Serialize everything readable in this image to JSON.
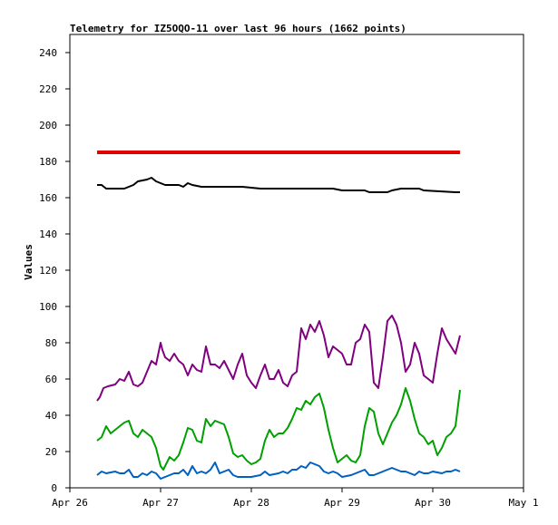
{
  "chart_data": {
    "type": "line",
    "title": "Telemetry for IZ5OQO-11 over last 96 hours (1662 points)",
    "xlabel": "",
    "ylabel": "Values",
    "xlim": [
      0,
      5
    ],
    "ylim": [
      0,
      250
    ],
    "x_ticks": [
      {
        "value": 0,
        "label": "Apr 26"
      },
      {
        "value": 1,
        "label": "Apr 27"
      },
      {
        "value": 2,
        "label": "Apr 28"
      },
      {
        "value": 3,
        "label": "Apr 29"
      },
      {
        "value": 4,
        "label": "Apr 30"
      },
      {
        "value": 5,
        "label": "May 1"
      }
    ],
    "y_ticks": [
      0,
      20,
      40,
      60,
      80,
      100,
      120,
      140,
      160,
      180,
      200,
      220,
      240
    ],
    "grid": false,
    "legend": "none",
    "series": [
      {
        "color": "#e00000",
        "points": [
          [
            0.3,
            185
          ],
          [
            1.0,
            185
          ],
          [
            1.5,
            185
          ],
          [
            2.0,
            185
          ],
          [
            2.5,
            185
          ],
          [
            3.0,
            185
          ],
          [
            3.5,
            185
          ],
          [
            4.0,
            185
          ],
          [
            4.3,
            185
          ]
        ]
      },
      {
        "color": "#000000",
        "points": [
          [
            0.3,
            167
          ],
          [
            0.35,
            167
          ],
          [
            0.4,
            165
          ],
          [
            0.6,
            165
          ],
          [
            0.7,
            167
          ],
          [
            0.75,
            169
          ],
          [
            0.85,
            170
          ],
          [
            0.9,
            171
          ],
          [
            0.95,
            169
          ],
          [
            1.0,
            168
          ],
          [
            1.05,
            167
          ],
          [
            1.2,
            167
          ],
          [
            1.25,
            166
          ],
          [
            1.3,
            168
          ],
          [
            1.35,
            167
          ],
          [
            1.45,
            166
          ],
          [
            1.9,
            166
          ],
          [
            2.1,
            165
          ],
          [
            2.5,
            165
          ],
          [
            2.6,
            165
          ],
          [
            2.9,
            165
          ],
          [
            3.0,
            164
          ],
          [
            3.25,
            164
          ],
          [
            3.3,
            163
          ],
          [
            3.5,
            163
          ],
          [
            3.55,
            164
          ],
          [
            3.65,
            165
          ],
          [
            3.85,
            165
          ],
          [
            3.9,
            164
          ],
          [
            4.25,
            163
          ],
          [
            4.3,
            163
          ]
        ]
      },
      {
        "color": "#800080",
        "points": [
          [
            0.3,
            48
          ],
          [
            0.33,
            50
          ],
          [
            0.37,
            55
          ],
          [
            0.42,
            56
          ],
          [
            0.5,
            57
          ],
          [
            0.55,
            60
          ],
          [
            0.6,
            59
          ],
          [
            0.65,
            64
          ],
          [
            0.7,
            57
          ],
          [
            0.75,
            56
          ],
          [
            0.8,
            58
          ],
          [
            0.85,
            64
          ],
          [
            0.9,
            70
          ],
          [
            0.95,
            68
          ],
          [
            1.0,
            80
          ],
          [
            1.02,
            76
          ],
          [
            1.05,
            72
          ],
          [
            1.1,
            70
          ],
          [
            1.15,
            74
          ],
          [
            1.2,
            70
          ],
          [
            1.25,
            68
          ],
          [
            1.3,
            62
          ],
          [
            1.35,
            68
          ],
          [
            1.4,
            65
          ],
          [
            1.45,
            64
          ],
          [
            1.5,
            78
          ],
          [
            1.55,
            68
          ],
          [
            1.6,
            68
          ],
          [
            1.65,
            66
          ],
          [
            1.7,
            70
          ],
          [
            1.75,
            65
          ],
          [
            1.8,
            60
          ],
          [
            1.85,
            68
          ],
          [
            1.9,
            74
          ],
          [
            1.95,
            62
          ],
          [
            2.0,
            58
          ],
          [
            2.05,
            55
          ],
          [
            2.1,
            62
          ],
          [
            2.15,
            68
          ],
          [
            2.2,
            60
          ],
          [
            2.25,
            60
          ],
          [
            2.3,
            65
          ],
          [
            2.35,
            58
          ],
          [
            2.4,
            56
          ],
          [
            2.45,
            62
          ],
          [
            2.5,
            64
          ],
          [
            2.55,
            88
          ],
          [
            2.6,
            82
          ],
          [
            2.65,
            90
          ],
          [
            2.7,
            86
          ],
          [
            2.75,
            92
          ],
          [
            2.8,
            84
          ],
          [
            2.85,
            72
          ],
          [
            2.9,
            78
          ],
          [
            2.95,
            76
          ],
          [
            3.0,
            74
          ],
          [
            3.05,
            68
          ],
          [
            3.1,
            68
          ],
          [
            3.15,
            80
          ],
          [
            3.2,
            82
          ],
          [
            3.25,
            90
          ],
          [
            3.3,
            86
          ],
          [
            3.35,
            58
          ],
          [
            3.4,
            55
          ],
          [
            3.45,
            72
          ],
          [
            3.5,
            92
          ],
          [
            3.55,
            95
          ],
          [
            3.6,
            90
          ],
          [
            3.65,
            80
          ],
          [
            3.7,
            64
          ],
          [
            3.75,
            68
          ],
          [
            3.8,
            80
          ],
          [
            3.85,
            74
          ],
          [
            3.9,
            62
          ],
          [
            3.95,
            60
          ],
          [
            4.0,
            58
          ],
          [
            4.05,
            74
          ],
          [
            4.1,
            88
          ],
          [
            4.15,
            82
          ],
          [
            4.2,
            78
          ],
          [
            4.25,
            74
          ],
          [
            4.3,
            84
          ]
        ]
      },
      {
        "color": "#00a000",
        "points": [
          [
            0.3,
            26
          ],
          [
            0.35,
            28
          ],
          [
            0.4,
            34
          ],
          [
            0.45,
            30
          ],
          [
            0.5,
            32
          ],
          [
            0.55,
            34
          ],
          [
            0.6,
            36
          ],
          [
            0.65,
            37
          ],
          [
            0.7,
            30
          ],
          [
            0.75,
            28
          ],
          [
            0.8,
            32
          ],
          [
            0.85,
            30
          ],
          [
            0.9,
            28
          ],
          [
            0.95,
            22
          ],
          [
            1.0,
            12
          ],
          [
            1.03,
            10
          ],
          [
            1.1,
            17
          ],
          [
            1.15,
            15
          ],
          [
            1.2,
            18
          ],
          [
            1.25,
            25
          ],
          [
            1.3,
            33
          ],
          [
            1.35,
            32
          ],
          [
            1.4,
            26
          ],
          [
            1.45,
            25
          ],
          [
            1.5,
            38
          ],
          [
            1.55,
            34
          ],
          [
            1.6,
            37
          ],
          [
            1.65,
            36
          ],
          [
            1.7,
            35
          ],
          [
            1.75,
            28
          ],
          [
            1.8,
            19
          ],
          [
            1.85,
            17
          ],
          [
            1.9,
            18
          ],
          [
            1.95,
            15
          ],
          [
            2.0,
            13
          ],
          [
            2.05,
            14
          ],
          [
            2.1,
            16
          ],
          [
            2.15,
            26
          ],
          [
            2.2,
            32
          ],
          [
            2.25,
            28
          ],
          [
            2.3,
            30
          ],
          [
            2.35,
            30
          ],
          [
            2.4,
            33
          ],
          [
            2.45,
            38
          ],
          [
            2.5,
            44
          ],
          [
            2.55,
            43
          ],
          [
            2.6,
            48
          ],
          [
            2.65,
            46
          ],
          [
            2.7,
            50
          ],
          [
            2.75,
            52
          ],
          [
            2.8,
            44
          ],
          [
            2.85,
            32
          ],
          [
            2.9,
            22
          ],
          [
            2.95,
            14
          ],
          [
            3.0,
            16
          ],
          [
            3.05,
            18
          ],
          [
            3.1,
            15
          ],
          [
            3.15,
            14
          ],
          [
            3.2,
            18
          ],
          [
            3.25,
            34
          ],
          [
            3.3,
            44
          ],
          [
            3.35,
            42
          ],
          [
            3.4,
            30
          ],
          [
            3.45,
            24
          ],
          [
            3.5,
            30
          ],
          [
            3.55,
            36
          ],
          [
            3.6,
            40
          ],
          [
            3.65,
            46
          ],
          [
            3.7,
            55
          ],
          [
            3.75,
            48
          ],
          [
            3.8,
            38
          ],
          [
            3.85,
            30
          ],
          [
            3.9,
            28
          ],
          [
            3.95,
            24
          ],
          [
            4.0,
            26
          ],
          [
            4.05,
            18
          ],
          [
            4.1,
            22
          ],
          [
            4.15,
            28
          ],
          [
            4.2,
            30
          ],
          [
            4.25,
            34
          ],
          [
            4.3,
            54
          ]
        ]
      },
      {
        "color": "#0060c0",
        "points": [
          [
            0.3,
            7
          ],
          [
            0.35,
            9
          ],
          [
            0.4,
            8
          ],
          [
            0.5,
            9
          ],
          [
            0.55,
            8
          ],
          [
            0.6,
            8
          ],
          [
            0.65,
            10
          ],
          [
            0.7,
            6
          ],
          [
            0.75,
            6
          ],
          [
            0.8,
            8
          ],
          [
            0.85,
            7
          ],
          [
            0.9,
            9
          ],
          [
            0.95,
            8
          ],
          [
            1.0,
            5
          ],
          [
            1.05,
            6
          ],
          [
            1.1,
            7
          ],
          [
            1.15,
            8
          ],
          [
            1.2,
            8
          ],
          [
            1.25,
            10
          ],
          [
            1.3,
            7
          ],
          [
            1.35,
            12
          ],
          [
            1.4,
            8
          ],
          [
            1.45,
            9
          ],
          [
            1.5,
            8
          ],
          [
            1.55,
            10
          ],
          [
            1.6,
            14
          ],
          [
            1.65,
            8
          ],
          [
            1.7,
            9
          ],
          [
            1.75,
            10
          ],
          [
            1.8,
            7
          ],
          [
            1.85,
            6
          ],
          [
            1.9,
            6
          ],
          [
            2.0,
            6
          ],
          [
            2.1,
            7
          ],
          [
            2.15,
            9
          ],
          [
            2.2,
            7
          ],
          [
            2.3,
            8
          ],
          [
            2.35,
            9
          ],
          [
            2.4,
            8
          ],
          [
            2.45,
            10
          ],
          [
            2.5,
            10
          ],
          [
            2.55,
            12
          ],
          [
            2.6,
            11
          ],
          [
            2.65,
            14
          ],
          [
            2.7,
            13
          ],
          [
            2.75,
            12
          ],
          [
            2.8,
            9
          ],
          [
            2.85,
            8
          ],
          [
            2.9,
            9
          ],
          [
            2.95,
            8
          ],
          [
            3.0,
            6
          ],
          [
            3.1,
            7
          ],
          [
            3.2,
            9
          ],
          [
            3.25,
            10
          ],
          [
            3.3,
            7
          ],
          [
            3.35,
            7
          ],
          [
            3.4,
            8
          ],
          [
            3.5,
            10
          ],
          [
            3.55,
            11
          ],
          [
            3.6,
            10
          ],
          [
            3.65,
            9
          ],
          [
            3.7,
            9
          ],
          [
            3.75,
            8
          ],
          [
            3.8,
            7
          ],
          [
            3.85,
            9
          ],
          [
            3.9,
            8
          ],
          [
            3.95,
            8
          ],
          [
            4.0,
            9
          ],
          [
            4.1,
            8
          ],
          [
            4.15,
            9
          ],
          [
            4.2,
            9
          ],
          [
            4.25,
            10
          ],
          [
            4.3,
            9
          ]
        ]
      }
    ]
  }
}
